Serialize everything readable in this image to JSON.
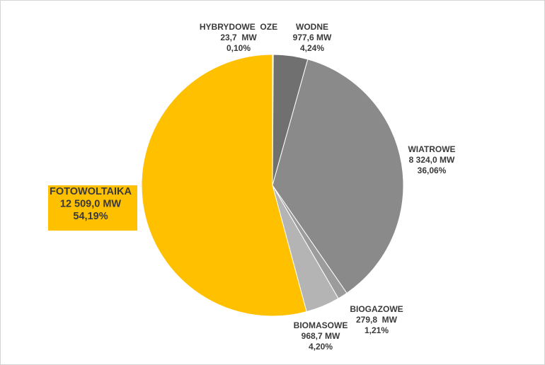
{
  "chart_data": {
    "type": "pie",
    "title": "",
    "unit": "MW",
    "slices": [
      {
        "name": "HYBRYDOWE  OZE",
        "value_label": "23,7  MW",
        "percent_label": "0,10%",
        "value": 23.7,
        "percent": 0.1,
        "color": "#b0b0b0",
        "highlight": false
      },
      {
        "name": "WODNE",
        "value_label": "977,6 MW",
        "percent_label": "4,24%",
        "value": 977.6,
        "percent": 4.24,
        "color": "#707070",
        "highlight": false
      },
      {
        "name": "WIATROWE",
        "value_label": "8 324,0 MW",
        "percent_label": "36,06%",
        "value": 8324.0,
        "percent": 36.06,
        "color": "#8a8a8a",
        "highlight": false
      },
      {
        "name": "BIOGAZOWE",
        "value_label": "279,8  MW",
        "percent_label": "1,21%",
        "value": 279.8,
        "percent": 1.21,
        "color": "#9c9c9c",
        "highlight": false
      },
      {
        "name": "BIOMASOWE",
        "value_label": "968,7 MW",
        "percent_label": "4,20%",
        "value": 968.7,
        "percent": 4.2,
        "color": "#b4b4b4",
        "highlight": false
      },
      {
        "name": "FOTOWOLTAIKA",
        "value_label": "12 509,0 MW",
        "percent_label": "54,19%",
        "value": 12509.0,
        "percent": 54.19,
        "color": "#ffc000",
        "highlight": true
      }
    ]
  }
}
